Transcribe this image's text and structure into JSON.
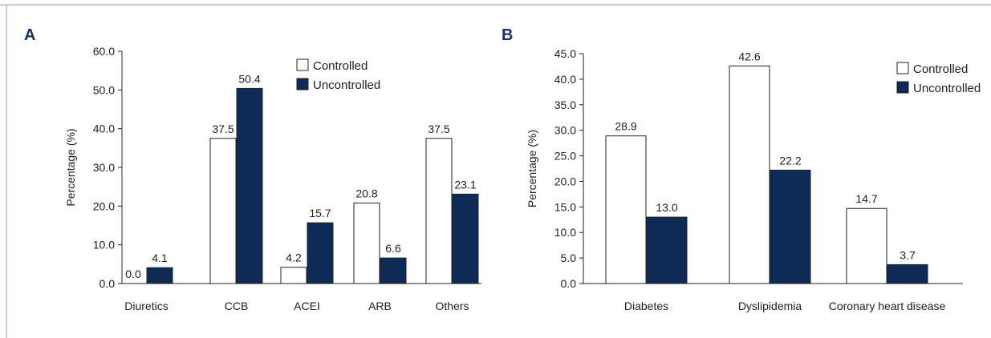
{
  "colors": {
    "controlled": "#ffffff",
    "uncontrolled": "#0e2a57",
    "stroke": "#222222",
    "panel_letter": "#1b2f5b"
  },
  "chart_data": [
    {
      "panel": "A",
      "type": "bar",
      "ylabel": "Percentage (%)",
      "xlabel": "",
      "ylim": [
        0,
        60
      ],
      "yticks": [
        "0.0",
        "10.0",
        "20.0",
        "30.0",
        "40.0",
        "50.0",
        "60.0"
      ],
      "categories": [
        "Diuretics",
        "CCB",
        "ACEI",
        "ARB",
        "Others"
      ],
      "legend_position": "top-right",
      "series": [
        {
          "name": "Controlled",
          "values": [
            0.0,
            37.5,
            4.2,
            20.8,
            37.5
          ],
          "labels": [
            "0.0",
            "37.5",
            "4.2",
            "20.8",
            "37.5"
          ]
        },
        {
          "name": "Uncontrolled",
          "values": [
            4.1,
            50.4,
            15.7,
            6.6,
            23.1
          ],
          "labels": [
            "4.1",
            "50.4",
            "15.7",
            "6.6",
            "23.1"
          ]
        }
      ]
    },
    {
      "panel": "B",
      "type": "bar",
      "ylabel": "Percentage (%)",
      "xlabel": "",
      "ylim": [
        0,
        45
      ],
      "yticks": [
        "0.0",
        "5.0",
        "10.0",
        "15.0",
        "20.0",
        "25.0",
        "30.0",
        "35.0",
        "40.0",
        "45.0"
      ],
      "categories": [
        "Diabetes",
        "Dyslipidemia",
        "Coronary heart disease"
      ],
      "legend_position": "top-right",
      "series": [
        {
          "name": "Controlled",
          "values": [
            28.9,
            42.6,
            14.7
          ],
          "labels": [
            "28.9",
            "42.6",
            "14.7"
          ]
        },
        {
          "name": "Uncontrolled",
          "values": [
            13.0,
            22.2,
            3.7
          ],
          "labels": [
            "13.0",
            "22.2",
            "3.7"
          ]
        }
      ]
    }
  ]
}
